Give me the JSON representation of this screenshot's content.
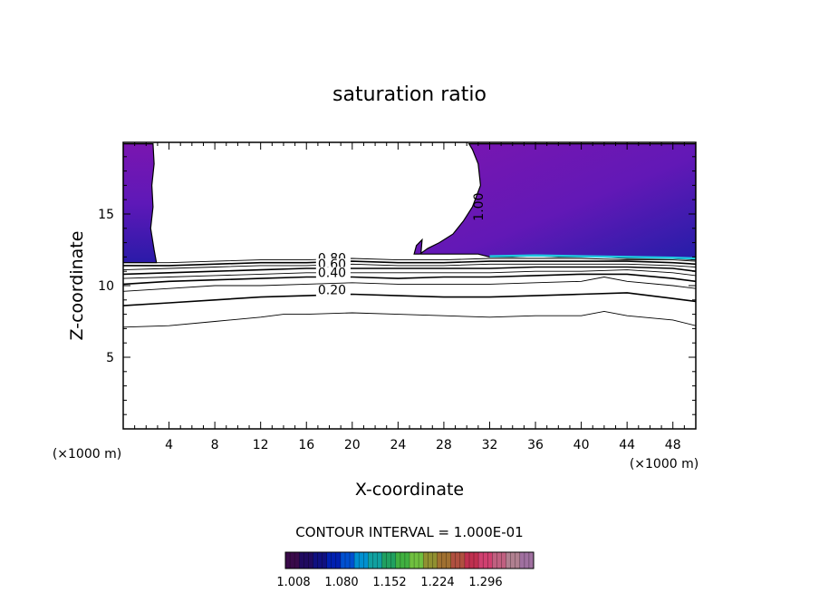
{
  "chart_data": {
    "type": "heatmap",
    "title": "saturation ratio",
    "xlabel": "X-coordinate",
    "ylabel": "Z-coordinate",
    "x_unit": "(×1000 m)",
    "z_unit": "(×1000 m)",
    "xlim": [
      0,
      50
    ],
    "ylim": [
      0,
      20
    ],
    "x_ticks": [
      4,
      8,
      12,
      16,
      20,
      24,
      28,
      32,
      36,
      40,
      44,
      48
    ],
    "y_ticks": [
      5,
      10,
      15
    ],
    "contour_interval_text": "CONTOUR INTERVAL = 1.000E-01",
    "contour_labels": [
      {
        "text": "0.80",
        "x": 17,
        "z": 11.6
      },
      {
        "text": "0.60",
        "x": 17,
        "z": 11.2
      },
      {
        "text": "0.40",
        "x": 17,
        "z": 10.6
      },
      {
        "text": "0.20",
        "x": 17,
        "z": 9.4
      },
      {
        "text": "1.00",
        "x": 31.4,
        "z": 15.5
      }
    ],
    "contour_lines": [
      {
        "level": 0.1,
        "x": [
          0,
          4,
          8,
          12,
          14,
          16,
          20,
          24,
          28,
          32,
          36,
          40,
          42,
          44,
          48,
          50
        ],
        "z": [
          7.1,
          7.2,
          7.5,
          7.8,
          8.0,
          8.0,
          8.1,
          8.0,
          7.9,
          7.8,
          7.9,
          7.9,
          8.2,
          7.9,
          7.6,
          7.2
        ]
      },
      {
        "level": 0.2,
        "x": [
          0,
          4,
          8,
          12,
          16,
          20,
          24,
          28,
          32,
          36,
          40,
          44,
          48,
          50
        ],
        "z": [
          8.6,
          8.8,
          9.0,
          9.2,
          9.3,
          9.4,
          9.3,
          9.2,
          9.2,
          9.3,
          9.4,
          9.5,
          9.1,
          8.9
        ]
      },
      {
        "level": 0.3,
        "x": [
          0,
          4,
          8,
          12,
          16,
          20,
          24,
          28,
          32,
          36,
          40,
          42,
          44,
          48,
          50
        ],
        "z": [
          9.6,
          9.8,
          10.0,
          10.0,
          10.1,
          10.2,
          10.1,
          10.1,
          10.1,
          10.2,
          10.3,
          10.6,
          10.3,
          10.0,
          9.8
        ]
      },
      {
        "level": 0.4,
        "x": [
          0,
          4,
          8,
          12,
          16,
          20,
          24,
          28,
          32,
          36,
          40,
          44,
          48,
          50
        ],
        "z": [
          10.1,
          10.3,
          10.4,
          10.5,
          10.6,
          10.6,
          10.5,
          10.6,
          10.6,
          10.7,
          10.8,
          10.8,
          10.5,
          10.3
        ]
      },
      {
        "level": 0.5,
        "x": [
          0,
          4,
          8,
          12,
          16,
          20,
          24,
          28,
          32,
          36,
          40,
          44,
          48,
          50
        ],
        "z": [
          10.5,
          10.6,
          10.7,
          10.8,
          10.9,
          10.9,
          10.9,
          10.9,
          10.9,
          11.0,
          11.0,
          11.1,
          10.9,
          10.7
        ]
      },
      {
        "level": 0.6,
        "x": [
          0,
          4,
          8,
          12,
          16,
          20,
          24,
          28,
          32,
          36,
          40,
          44,
          48,
          50
        ],
        "z": [
          10.8,
          10.9,
          11.0,
          11.1,
          11.2,
          11.2,
          11.2,
          11.2,
          11.2,
          11.3,
          11.3,
          11.3,
          11.2,
          11.0
        ]
      },
      {
        "level": 0.7,
        "x": [
          0,
          4,
          8,
          12,
          16,
          20,
          24,
          28,
          32,
          36,
          40,
          44,
          48,
          50
        ],
        "z": [
          11.1,
          11.2,
          11.3,
          11.4,
          11.4,
          11.5,
          11.4,
          11.4,
          11.5,
          11.5,
          11.5,
          11.5,
          11.4,
          11.3
        ]
      },
      {
        "level": 0.8,
        "x": [
          0,
          4,
          8,
          12,
          16,
          20,
          24,
          28,
          32,
          36,
          40,
          44,
          48,
          50
        ],
        "z": [
          11.4,
          11.4,
          11.5,
          11.6,
          11.6,
          11.7,
          11.6,
          11.6,
          11.7,
          11.7,
          11.7,
          11.7,
          11.6,
          11.5
        ]
      },
      {
        "level": 0.9,
        "x": [
          0,
          4,
          8,
          12,
          16,
          20,
          24,
          28,
          32,
          36,
          40,
          44,
          48,
          50
        ],
        "z": [
          11.6,
          11.6,
          11.7,
          11.8,
          11.8,
          11.9,
          11.8,
          11.8,
          11.9,
          11.9,
          11.9,
          11.8,
          11.8,
          11.7
        ]
      }
    ],
    "filled_regions": [
      {
        "region": "left supersaturated column",
        "x": [
          0,
          2.9,
          2.7,
          2.4,
          2.6,
          2.5,
          2.7,
          2.6,
          0
        ],
        "z": [
          11.6,
          11.6,
          12.5,
          14,
          15.5,
          17,
          18.5,
          19.9,
          19.9
        ],
        "color": "#7a16b0"
      },
      {
        "region": "right supersaturated region",
        "x": [
          31,
          32,
          34,
          36,
          38,
          40,
          42,
          44,
          46,
          48,
          50,
          50,
          30.2,
          30.5,
          31.0,
          31.2,
          30.5,
          29.7,
          28.8,
          27.6,
          26.6,
          25.9,
          25.4,
          25.6,
          26.1,
          26.0
        ],
        "z": [
          12.2,
          12.0,
          12.0,
          12.1,
          12.0,
          12.0,
          12.0,
          11.9,
          11.9,
          11.9,
          11.8,
          19.9,
          19.9,
          19.5,
          18.5,
          17,
          15.5,
          14.5,
          13.6,
          13.0,
          12.6,
          12.2,
          12.2,
          12.8,
          13.2,
          12.2
        ],
        "color": "#7a16b0"
      }
    ],
    "colorbar": {
      "tick_labels": [
        "1.008",
        "1.080",
        "1.152",
        "1.224",
        "1.296"
      ],
      "colors": [
        "#3a0a4a",
        "#200a60",
        "#101080",
        "#0020b0",
        "#0050d0",
        "#0090d0",
        "#10a0a0",
        "#20a060",
        "#40b040",
        "#70c040",
        "#909030",
        "#a07030",
        "#b05040",
        "#c03050",
        "#d04070",
        "#c06080",
        "#b08090",
        "#a070a0"
      ]
    }
  }
}
